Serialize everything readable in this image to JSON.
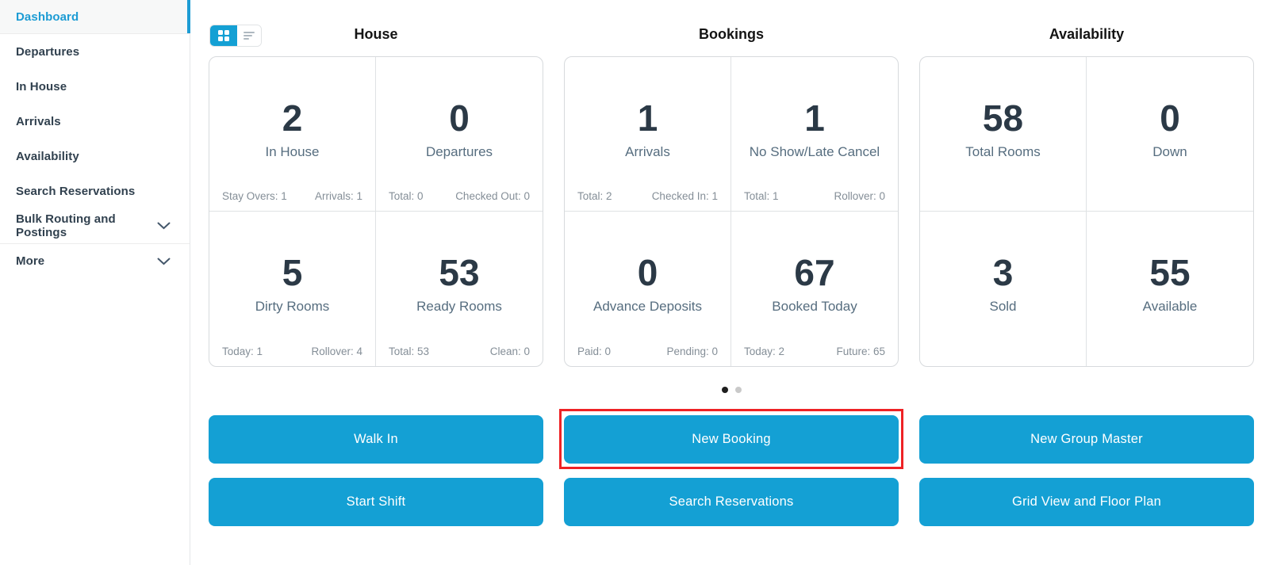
{
  "sidebar": {
    "items": [
      {
        "label": "Dashboard",
        "active": true,
        "expandable": false
      },
      {
        "label": "Departures",
        "active": false,
        "expandable": false
      },
      {
        "label": "In House",
        "active": false,
        "expandable": false
      },
      {
        "label": "Arrivals",
        "active": false,
        "expandable": false
      },
      {
        "label": "Availability",
        "active": false,
        "expandable": false
      },
      {
        "label": "Search Reservations",
        "active": false,
        "expandable": false
      },
      {
        "label": "Bulk Routing and Postings",
        "active": false,
        "expandable": true
      },
      {
        "label": "More",
        "active": false,
        "expandable": true,
        "divider_above": true
      }
    ]
  },
  "view_toggle": {
    "active": "grid",
    "options": [
      "grid",
      "list"
    ]
  },
  "groups": [
    {
      "title": "House",
      "cards": [
        {
          "value": "2",
          "label": "In House",
          "stat_left": "Stay Overs: 1",
          "stat_right": "Arrivals: 1",
          "menu": true
        },
        {
          "value": "0",
          "label": "Departures",
          "stat_left": "Total: 0",
          "stat_right": "Checked Out: 0",
          "menu": true
        },
        {
          "value": "5",
          "label": "Dirty Rooms",
          "stat_left": "Today: 1",
          "stat_right": "Rollover: 4",
          "menu": true
        },
        {
          "value": "53",
          "label": "Ready Rooms",
          "stat_left": "Total: 53",
          "stat_right": "Clean: 0",
          "menu": true
        }
      ]
    },
    {
      "title": "Bookings",
      "cards": [
        {
          "value": "1",
          "label": "Arrivals",
          "stat_left": "Total: 2",
          "stat_right": "Checked In: 1",
          "menu": true
        },
        {
          "value": "1",
          "label": "No Show/Late Cancel",
          "stat_left": "Total: 1",
          "stat_right": "Rollover: 0",
          "menu": true
        },
        {
          "value": "0",
          "label": "Advance Deposits",
          "stat_left": "Paid: 0",
          "stat_right": "Pending: 0",
          "menu": true
        },
        {
          "value": "67",
          "label": "Booked Today",
          "stat_left": "Today: 2",
          "stat_right": "Future: 65",
          "menu": true
        }
      ]
    },
    {
      "title": "Availability",
      "cards": [
        {
          "value": "58",
          "label": "Total Rooms",
          "menu": false
        },
        {
          "value": "0",
          "label": "Down",
          "menu": true
        },
        {
          "value": "3",
          "label": "Sold",
          "menu": false
        },
        {
          "value": "55",
          "label": "Available",
          "menu": true
        }
      ]
    }
  ],
  "pagination": {
    "dots": [
      {
        "active": true
      },
      {
        "active": false
      }
    ]
  },
  "action_buttons": {
    "rows": [
      [
        {
          "label": "Walk In",
          "highlighted": false
        },
        {
          "label": "New Booking",
          "highlighted": true
        },
        {
          "label": "New Group Master",
          "highlighted": false
        }
      ],
      [
        {
          "label": "Start Shift",
          "highlighted": false
        },
        {
          "label": "Search Reservations",
          "highlighted": false
        },
        {
          "label": "Grid View and Floor Plan",
          "highlighted": false
        }
      ]
    ]
  },
  "colors": {
    "accent_blue": "#14a0d4",
    "active_nav_blue": "#1d9cd4",
    "highlight_red": "#ee2225",
    "number_text": "#2b3946",
    "label_text": "#566d7f",
    "stat_text": "#848e97",
    "sidebar_text": "#31414f"
  }
}
